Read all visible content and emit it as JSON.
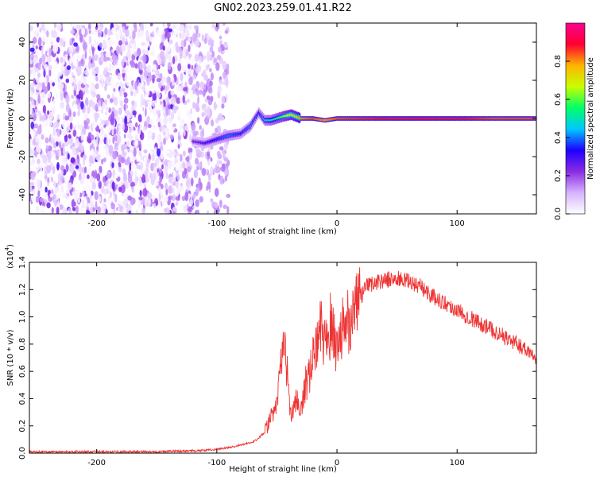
{
  "title": "GN02.2023.259.01.41.R22",
  "chart_data": [
    {
      "type": "heatmap",
      "title": "GN02.2023.259.01.41.R22",
      "xlabel": "Height of straight line (km)",
      "ylabel": "Frequency (Hz)",
      "xlim": [
        -256,
        166
      ],
      "ylim": [
        -50,
        50
      ],
      "xticks": [
        -200,
        -100,
        0,
        100
      ],
      "yticks": [
        -40,
        -20,
        0,
        20,
        40
      ],
      "colorbar": {
        "label": "Normalized spectral amplitude",
        "range": [
          0.0,
          1.0
        ],
        "ticks": [
          "0.0",
          "0.2",
          "0.4",
          "0.6",
          "0.8"
        ],
        "colormap": [
          "#ffffff",
          "#d6b2ff",
          "#8a2be2",
          "#1e00ff",
          "#00c8ff",
          "#00ff66",
          "#c8ff00",
          "#ffb400",
          "#ff0033",
          "#ff0090"
        ]
      },
      "noise_region": {
        "x_from": -256,
        "x_to": -120,
        "sparse_until": -90
      },
      "signal_trace": [
        {
          "x": -120,
          "y": -12,
          "amp": 0.25
        },
        {
          "x": -110,
          "y": -13,
          "amp": 0.3
        },
        {
          "x": -100,
          "y": -11,
          "amp": 0.35
        },
        {
          "x": -90,
          "y": -9,
          "amp": 0.4
        },
        {
          "x": -80,
          "y": -8,
          "amp": 0.35
        },
        {
          "x": -72,
          "y": -4,
          "amp": 0.4
        },
        {
          "x": -65,
          "y": 3,
          "amp": 0.35
        },
        {
          "x": -60,
          "y": -1,
          "amp": 0.45
        },
        {
          "x": -55,
          "y": -1,
          "amp": 0.5
        },
        {
          "x": -45,
          "y": 1,
          "amp": 0.6
        },
        {
          "x": -38,
          "y": 2,
          "amp": 0.7
        },
        {
          "x": -30,
          "y": 0,
          "amp": 0.8
        },
        {
          "x": -20,
          "y": 0,
          "amp": 0.85
        },
        {
          "x": -10,
          "y": -1,
          "amp": 0.8
        },
        {
          "x": 0,
          "y": 0,
          "amp": 0.85
        },
        {
          "x": 50,
          "y": 0,
          "amp": 0.9
        },
        {
          "x": 100,
          "y": 0,
          "amp": 0.9
        },
        {
          "x": 130,
          "y": 0,
          "amp": 0.85
        },
        {
          "x": 166,
          "y": 0,
          "amp": 0.85
        }
      ]
    },
    {
      "type": "line",
      "xlabel": "Height of straight line (km)",
      "ylabel": "SNR (10 * v/v)",
      "y_multiplier": "(x10",
      "y_multiplier_exp": "4",
      "y_multiplier_close": ")",
      "xlim": [
        -256,
        166
      ],
      "ylim": [
        0,
        1.4
      ],
      "xticks": [
        -200,
        -100,
        0,
        100
      ],
      "yticks": [
        "0.0",
        "0.2",
        "0.4",
        "0.6",
        "0.8",
        "1.0",
        "1.2",
        "1.4"
      ],
      "color": "#ee3333",
      "series": [
        {
          "x": [
            -256,
            -200,
            -150,
            -110,
            -100,
            -90,
            -70,
            -60,
            -50,
            -45,
            -40,
            -38,
            -35,
            -30,
            -25,
            -20,
            -15,
            -10,
            -5,
            0,
            10,
            20,
            25,
            30,
            40,
            50,
            60,
            70,
            80,
            100,
            120,
            140,
            160,
            166
          ],
          "values": [
            0.01,
            0.01,
            0.01,
            0.02,
            0.03,
            0.04,
            0.08,
            0.15,
            0.35,
            0.85,
            0.45,
            0.25,
            0.4,
            0.3,
            0.55,
            0.7,
            0.9,
            0.85,
            0.95,
            0.8,
            1.0,
            1.15,
            1.22,
            1.25,
            1.27,
            1.28,
            1.26,
            1.22,
            1.15,
            1.05,
            0.95,
            0.85,
            0.75,
            0.7
          ]
        }
      ]
    }
  ]
}
